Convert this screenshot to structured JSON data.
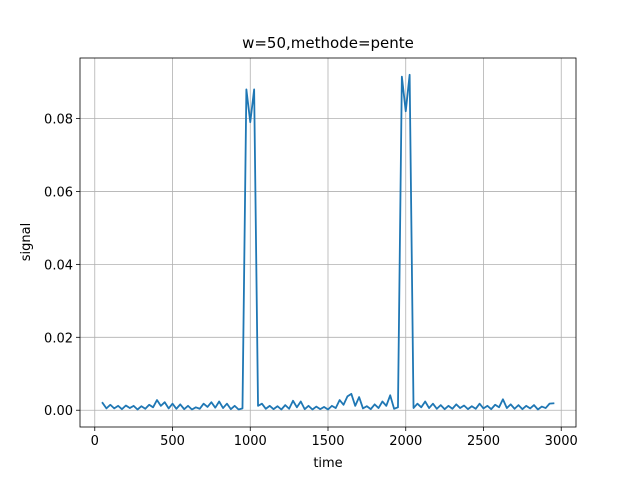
{
  "chart_data": {
    "type": "line",
    "title": "w=50,methode=pente",
    "x_label": "time",
    "y_label": "signal",
    "x": [
      50,
      75,
      100,
      125,
      150,
      175,
      200,
      225,
      250,
      275,
      300,
      325,
      350,
      375,
      400,
      425,
      450,
      475,
      500,
      525,
      550,
      575,
      600,
      625,
      650,
      675,
      700,
      725,
      750,
      775,
      800,
      825,
      850,
      875,
      900,
      925,
      950,
      975,
      1000,
      1025,
      1050,
      1075,
      1100,
      1125,
      1150,
      1175,
      1200,
      1225,
      1250,
      1275,
      1300,
      1325,
      1350,
      1375,
      1400,
      1425,
      1450,
      1475,
      1500,
      1525,
      1550,
      1575,
      1600,
      1625,
      1650,
      1675,
      1700,
      1725,
      1750,
      1775,
      1800,
      1825,
      1850,
      1875,
      1900,
      1925,
      1950,
      1975,
      2000,
      2025,
      2050,
      2075,
      2100,
      2125,
      2150,
      2175,
      2200,
      2225,
      2250,
      2275,
      2300,
      2325,
      2350,
      2375,
      2400,
      2425,
      2450,
      2475,
      2500,
      2525,
      2550,
      2575,
      2600,
      2625,
      2650,
      2675,
      2700,
      2725,
      2750,
      2775,
      2800,
      2825,
      2850,
      2875,
      2900,
      2925,
      2950
    ],
    "values": [
      0.002,
      0.0005,
      0.0015,
      0.0005,
      0.0012,
      0.0003,
      0.0013,
      0.0006,
      0.0012,
      0.0002,
      0.0011,
      0.0004,
      0.0015,
      0.0008,
      0.0028,
      0.0012,
      0.0022,
      0.0005,
      0.0018,
      0.0004,
      0.0016,
      0.0003,
      0.0012,
      0.0002,
      0.0008,
      0.0004,
      0.0018,
      0.0009,
      0.0022,
      0.0007,
      0.0024,
      0.0006,
      0.0018,
      0.0003,
      0.0012,
      0.0002,
      0.0005,
      0.088,
      0.079,
      0.088,
      0.0012,
      0.0018,
      0.0004,
      0.0012,
      0.0003,
      0.0011,
      0.0002,
      0.0014,
      0.0004,
      0.0026,
      0.0008,
      0.0024,
      0.0003,
      0.0012,
      0.0002,
      0.001,
      0.0003,
      0.0009,
      0.0002,
      0.0012,
      0.0006,
      0.0028,
      0.0015,
      0.0038,
      0.0045,
      0.0012,
      0.0036,
      0.0005,
      0.0011,
      0.0003,
      0.0016,
      0.0006,
      0.0024,
      0.0012,
      0.0041,
      0.0004,
      0.0008,
      0.0915,
      0.082,
      0.092,
      0.0006,
      0.0018,
      0.0008,
      0.0024,
      0.0006,
      0.0018,
      0.0004,
      0.0014,
      0.0003,
      0.0012,
      0.0004,
      0.0016,
      0.0006,
      0.0013,
      0.0003,
      0.0011,
      0.0004,
      0.0018,
      0.0005,
      0.0012,
      0.0003,
      0.0015,
      0.0008,
      0.003,
      0.0006,
      0.0016,
      0.0004,
      0.0014,
      0.0003,
      0.0012,
      0.0005,
      0.0014,
      0.0002,
      0.001,
      0.0006,
      0.0018,
      0.0019
    ],
    "color": "#1f77b4",
    "xlim": [
      -95,
      3095
    ],
    "xticks": [
      0,
      500,
      1000,
      1500,
      2000,
      2500,
      3000
    ],
    "ylim": [
      -0.0046,
      0.0966
    ],
    "yticks": [
      {
        "value": 0,
        "label": "0.00"
      },
      {
        "value": 0.02,
        "label": "0.02"
      },
      {
        "value": 0.04,
        "label": "0.04"
      },
      {
        "value": 0.06,
        "label": "0.06"
      },
      {
        "value": 0.08,
        "label": "0.08"
      }
    ],
    "grid": true
  }
}
